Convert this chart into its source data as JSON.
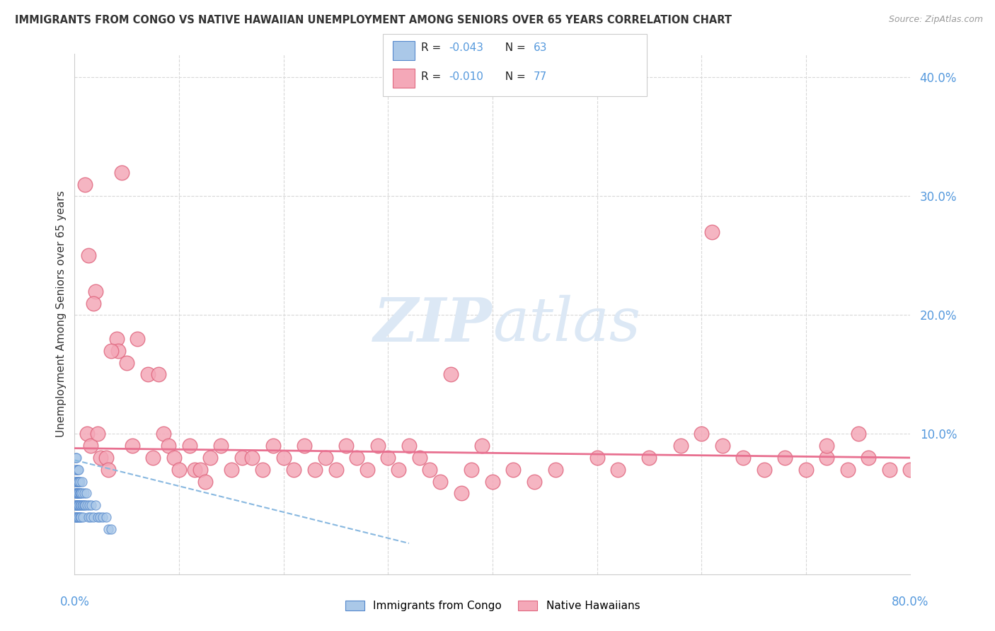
{
  "title": "IMMIGRANTS FROM CONGO VS NATIVE HAWAIIAN UNEMPLOYMENT AMONG SENIORS OVER 65 YEARS CORRELATION CHART",
  "source": "Source: ZipAtlas.com",
  "ylabel": "Unemployment Among Seniors over 65 years",
  "xlim": [
    0.0,
    0.8
  ],
  "ylim": [
    -0.018,
    0.42
  ],
  "legend_r1": "R = ",
  "legend_v1": "-0.043",
  "legend_n1_label": "N = ",
  "legend_n1_val": "63",
  "legend_r2": "R = ",
  "legend_v2": "-0.010",
  "legend_n2_label": "N = ",
  "legend_n2_val": "77",
  "congo_color": "#aac8e8",
  "congo_edge_color": "#5588cc",
  "hawaiian_color": "#f4a8b8",
  "hawaiian_edge_color": "#e06880",
  "trend_congo_color": "#88b8e0",
  "trend_hawaiian_color": "#e87090",
  "watermark_color": "#dce8f5",
  "grid_color": "#d8d8d8",
  "title_color": "#333333",
  "axis_label_color": "#5599dd",
  "legend_text_color": "#5599dd",
  "yticks": [
    0.1,
    0.2,
    0.3,
    0.4
  ],
  "ytick_labels": [
    "10.0%",
    "20.0%",
    "30.0%",
    "40.0%"
  ],
  "xtick_labels": [
    "0.0%",
    "80.0%"
  ],
  "bottom_legend_labels": [
    "Immigrants from Congo",
    "Native Hawaiians"
  ],
  "congo_x": [
    0.0002,
    0.0003,
    0.0005,
    0.0007,
    0.0008,
    0.001,
    0.001,
    0.001,
    0.001,
    0.001,
    0.0015,
    0.0015,
    0.002,
    0.002,
    0.002,
    0.002,
    0.002,
    0.002,
    0.0025,
    0.003,
    0.003,
    0.003,
    0.003,
    0.003,
    0.003,
    0.003,
    0.0035,
    0.004,
    0.004,
    0.004,
    0.004,
    0.004,
    0.004,
    0.005,
    0.005,
    0.005,
    0.005,
    0.005,
    0.006,
    0.006,
    0.006,
    0.007,
    0.007,
    0.007,
    0.008,
    0.008,
    0.009,
    0.009,
    0.01,
    0.011,
    0.012,
    0.013,
    0.014,
    0.015,
    0.016,
    0.018,
    0.02,
    0.022,
    0.024,
    0.027,
    0.03,
    0.032,
    0.035
  ],
  "congo_y": [
    0.05,
    0.04,
    0.06,
    0.03,
    0.07,
    0.05,
    0.04,
    0.03,
    0.06,
    0.08,
    0.05,
    0.04,
    0.07,
    0.06,
    0.05,
    0.04,
    0.03,
    0.08,
    0.05,
    0.06,
    0.05,
    0.04,
    0.03,
    0.07,
    0.06,
    0.05,
    0.04,
    0.06,
    0.05,
    0.04,
    0.03,
    0.07,
    0.06,
    0.05,
    0.04,
    0.03,
    0.06,
    0.05,
    0.04,
    0.05,
    0.03,
    0.06,
    0.04,
    0.05,
    0.04,
    0.03,
    0.05,
    0.04,
    0.04,
    0.05,
    0.04,
    0.03,
    0.04,
    0.03,
    0.04,
    0.03,
    0.04,
    0.03,
    0.03,
    0.03,
    0.03,
    0.02,
    0.02
  ],
  "hawaiian_x": [
    0.01,
    0.012,
    0.015,
    0.02,
    0.022,
    0.025,
    0.03,
    0.032,
    0.04,
    0.042,
    0.05,
    0.055,
    0.06,
    0.07,
    0.075,
    0.08,
    0.085,
    0.09,
    0.095,
    0.1,
    0.11,
    0.115,
    0.12,
    0.125,
    0.13,
    0.14,
    0.15,
    0.16,
    0.17,
    0.18,
    0.19,
    0.2,
    0.21,
    0.22,
    0.23,
    0.24,
    0.25,
    0.26,
    0.27,
    0.28,
    0.29,
    0.3,
    0.31,
    0.32,
    0.33,
    0.34,
    0.35,
    0.36,
    0.37,
    0.38,
    0.39,
    0.4,
    0.42,
    0.44,
    0.46,
    0.5,
    0.52,
    0.55,
    0.58,
    0.6,
    0.62,
    0.64,
    0.66,
    0.68,
    0.7,
    0.72,
    0.74,
    0.76,
    0.78,
    0.8,
    0.013,
    0.018,
    0.035,
    0.045,
    0.61,
    0.72,
    0.75
  ],
  "hawaiian_y": [
    0.31,
    0.1,
    0.09,
    0.22,
    0.1,
    0.08,
    0.08,
    0.07,
    0.18,
    0.17,
    0.16,
    0.09,
    0.18,
    0.15,
    0.08,
    0.15,
    0.1,
    0.09,
    0.08,
    0.07,
    0.09,
    0.07,
    0.07,
    0.06,
    0.08,
    0.09,
    0.07,
    0.08,
    0.08,
    0.07,
    0.09,
    0.08,
    0.07,
    0.09,
    0.07,
    0.08,
    0.07,
    0.09,
    0.08,
    0.07,
    0.09,
    0.08,
    0.07,
    0.09,
    0.08,
    0.07,
    0.06,
    0.15,
    0.05,
    0.07,
    0.09,
    0.06,
    0.07,
    0.06,
    0.07,
    0.08,
    0.07,
    0.08,
    0.09,
    0.1,
    0.09,
    0.08,
    0.07,
    0.08,
    0.07,
    0.08,
    0.07,
    0.08,
    0.07,
    0.07,
    0.25,
    0.21,
    0.17,
    0.32,
    0.27,
    0.09,
    0.1
  ]
}
